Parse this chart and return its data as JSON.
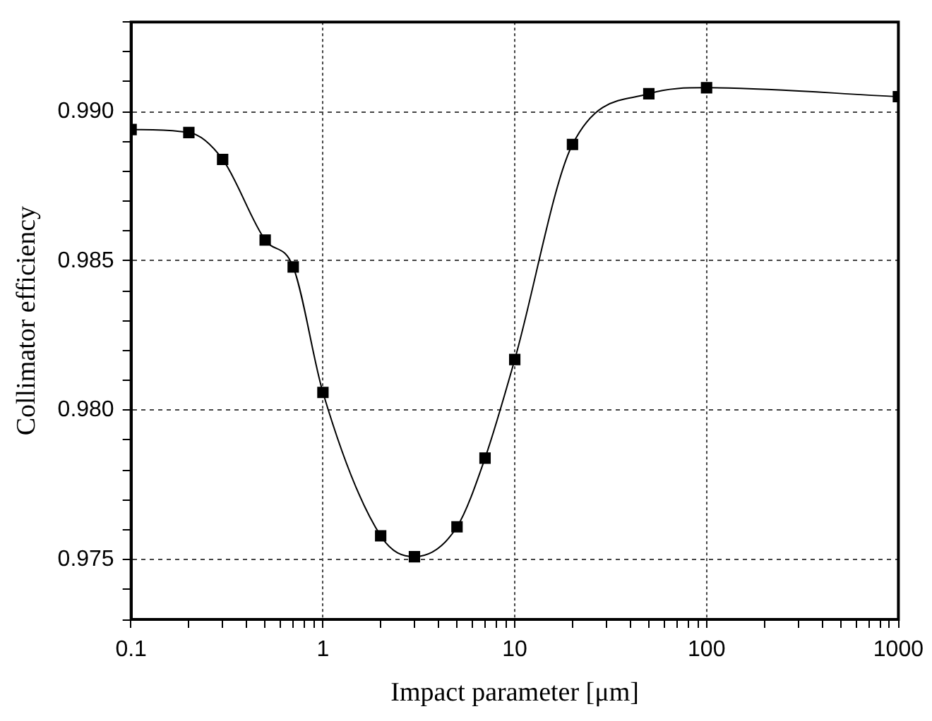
{
  "chart_data": {
    "type": "line",
    "xlabel": "Impact parameter [μm]",
    "ylabel": "Collimator efficiency",
    "x": [
      0.1,
      0.2,
      0.3,
      0.5,
      0.7,
      1,
      2,
      3,
      5,
      7,
      10,
      20,
      50,
      100,
      1000
    ],
    "series": [
      {
        "color": "#000000",
        "values": [
          0.9894,
          0.9893,
          0.9884,
          0.9857,
          0.9848,
          0.9806,
          0.9758,
          0.9751,
          0.9761,
          0.9784,
          0.9817,
          0.9889,
          0.9906,
          0.9908,
          0.9905
        ]
      }
    ],
    "log": "x",
    "xlim": [
      0.1,
      1000
    ],
    "xticks": [
      0.1,
      {
        "value": 0.2,
        "label": null
      },
      {
        "value": 0.3,
        "label": null
      },
      {
        "value": 0.4,
        "label": null
      },
      {
        "value": 0.5,
        "label": null
      },
      {
        "value": 0.6,
        "label": null
      },
      {
        "value": 0.7,
        "label": null
      },
      {
        "value": 0.8,
        "label": null
      },
      {
        "value": 0.9,
        "label": null
      },
      1,
      {
        "value": 2,
        "label": null
      },
      {
        "value": 3,
        "label": null
      },
      {
        "value": 4,
        "label": null
      },
      {
        "value": 5,
        "label": null
      },
      {
        "value": 6,
        "label": null
      },
      {
        "value": 7,
        "label": null
      },
      {
        "value": 8,
        "label": null
      },
      {
        "value": 9,
        "label": null
      },
      10,
      {
        "value": 20,
        "label": null
      },
      {
        "value": 30,
        "label": null
      },
      {
        "value": 40,
        "label": null
      },
      {
        "value": 50,
        "label": null
      },
      {
        "value": 60,
        "label": null
      },
      {
        "value": 70,
        "label": null
      },
      {
        "value": 80,
        "label": null
      },
      {
        "value": 90,
        "label": null
      },
      100,
      {
        "value": 200,
        "label": null
      },
      {
        "value": 300,
        "label": null
      },
      {
        "value": 400,
        "label": null
      },
      {
        "value": 500,
        "label": null
      },
      {
        "value": 600,
        "label": null
      },
      {
        "value": 700,
        "label": null
      },
      {
        "value": 800,
        "label": null
      },
      {
        "value": 900,
        "label": null
      },
      1000
    ],
    "ylim": [
      0.973,
      0.993
    ],
    "yticks": [
      {
        "value": 0.973,
        "label": null
      },
      {
        "value": 0.974,
        "label": null
      },
      {
        "value": 0.975,
        "label": "0.975"
      },
      {
        "value": 0.976,
        "label": null
      },
      {
        "value": 0.977,
        "label": null
      },
      {
        "value": 0.978,
        "label": null
      },
      {
        "value": 0.979,
        "label": null
      },
      {
        "value": 0.98,
        "label": "0.980"
      },
      {
        "value": 0.981,
        "label": null
      },
      {
        "value": 0.982,
        "label": null
      },
      {
        "value": 0.983,
        "label": null
      },
      {
        "value": 0.984,
        "label": null
      },
      {
        "value": 0.985,
        "label": "0.985"
      },
      {
        "value": 0.986,
        "label": null
      },
      {
        "value": 0.987,
        "label": null
      },
      {
        "value": 0.988,
        "label": null
      },
      {
        "value": 0.989,
        "label": null
      },
      {
        "value": 0.99,
        "label": "0.990"
      },
      {
        "value": 0.991,
        "label": null
      },
      {
        "value": 0.992,
        "label": null
      },
      {
        "value": 0.993,
        "label": null
      }
    ],
    "grid": true,
    "legend": false,
    "marker": "square",
    "line_style": "solid"
  }
}
